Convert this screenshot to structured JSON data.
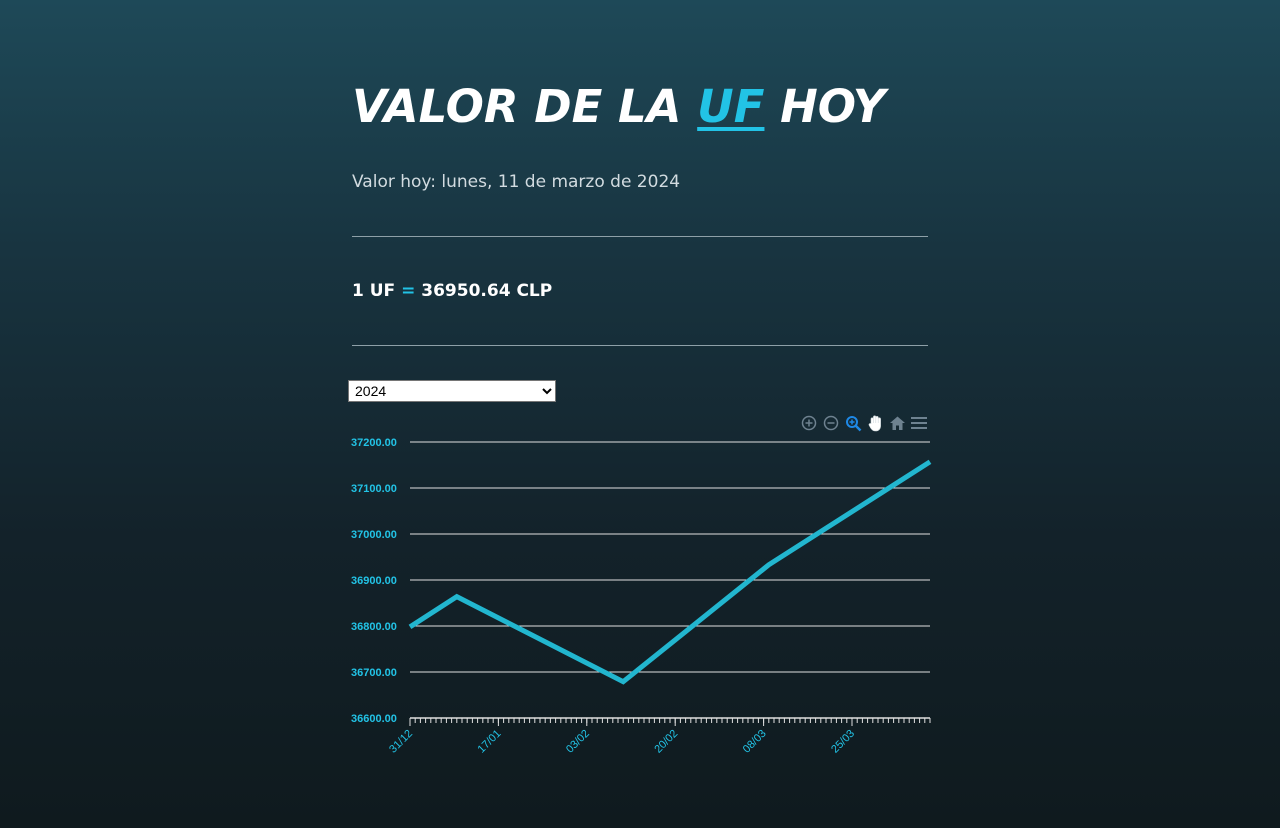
{
  "header": {
    "title_before": "VALOR DE LA ",
    "title_accent": "UF",
    "title_after": " HOY"
  },
  "date_line": "Valor hoy: lunes, 11 de marzo de 2024",
  "value": {
    "left": "1 UF ",
    "eq": "=",
    "right": " 36950.64 CLP"
  },
  "year_select": {
    "selected": "2024",
    "options": [
      "2024"
    ]
  },
  "toolbar": {
    "icons": [
      "zoom-in-icon",
      "zoom-out-icon",
      "zoom-selection-icon",
      "pan-hand-icon",
      "home-reset-icon",
      "menu-icon"
    ]
  },
  "colors": {
    "accent": "#22c3e6",
    "line": "#22b6cf",
    "grid": "#e0e0e0"
  },
  "chart_data": {
    "type": "line",
    "x_tick_labels": [
      "31/12",
      "17/01",
      "03/02",
      "20/02",
      "08/03",
      "25/03"
    ],
    "y_tick_labels": [
      "37200.00",
      "37100.00",
      "37000.00",
      "36900.00",
      "36800.00",
      "36700.00",
      "36600.00"
    ],
    "ylim": [
      36600,
      37200
    ],
    "xlim": [
      "2023-12-31",
      "2024-04-09"
    ],
    "series": [
      {
        "x": [
          "2023-12-31",
          "2024-01-09",
          "2024-02-10",
          "2024-03-09",
          "2024-04-09"
        ],
        "values": [
          36798,
          36864,
          36679,
          36933,
          37157
        ]
      }
    ],
    "grid": true,
    "legend": "none"
  }
}
